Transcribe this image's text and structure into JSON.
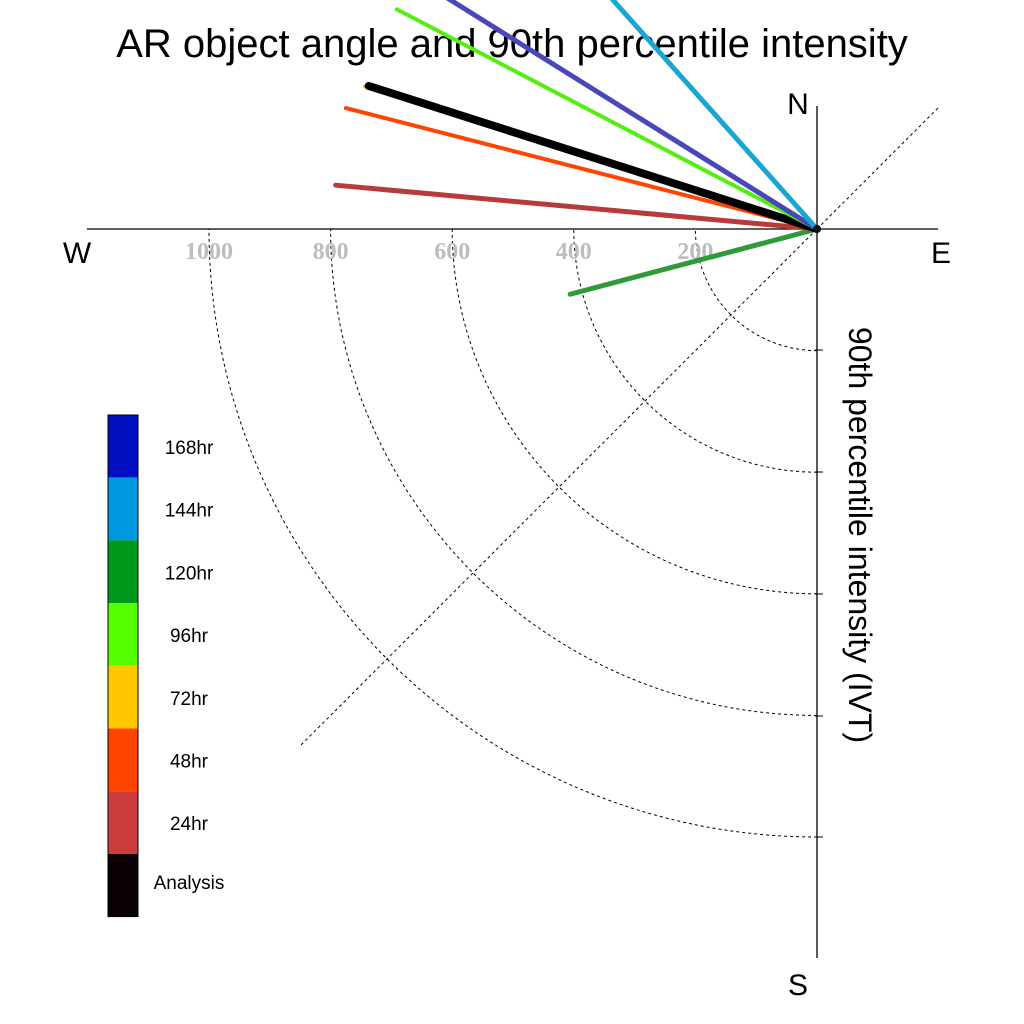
{
  "chart_data": {
    "type": "polar-vector",
    "title": "AR object angle and 90th percentile intensity",
    "ylabel": "90th percentile intensity (IVT)",
    "directions": {
      "north": "N",
      "south": "S",
      "east": "E",
      "west": "W"
    },
    "radial_ticks": [
      200,
      400,
      600,
      800,
      1000
    ],
    "radial_tick_labels": [
      "200",
      "400",
      "600",
      "800",
      "1000"
    ],
    "rmax": 1200,
    "grid": true,
    "legend_placement": "left",
    "legend": [
      {
        "label": "168hr",
        "color": "#0010c0"
      },
      {
        "label": "144hr",
        "color": "#0099e0"
      },
      {
        "label": "120hr",
        "color": "#009a1a"
      },
      {
        "label": "96hr",
        "color": "#55ff00"
      },
      {
        "label": "72hr",
        "color": "#ffc800"
      },
      {
        "label": "48hr",
        "color": "#ff4400"
      },
      {
        "label": "24hr",
        "color": "#cc3c3c"
      },
      {
        "label": "Analysis",
        "color": "#0a0005"
      }
    ],
    "vectors": [
      {
        "label": "120hr",
        "color": "#2f9a3a",
        "angle_deg": 165.2,
        "intensity": 420,
        "width": 5
      },
      {
        "label": "24hr",
        "color": "#b83a3a",
        "angle_deg": 185.2,
        "intensity": 795,
        "width": 5
      },
      {
        "label": "48hr",
        "color": "#ff4400",
        "angle_deg": 194.4,
        "intensity": 800,
        "width": 4
      },
      {
        "label": "72hr",
        "color": "#ffc800",
        "angle_deg": 197.5,
        "intensity": 780,
        "width": 4
      },
      {
        "label": "Analysis",
        "color": "#000000",
        "angle_deg": 197.7,
        "intensity": 774,
        "width": 8
      },
      {
        "label": "96hr",
        "color": "#55ee10",
        "angle_deg": 207.6,
        "intensity": 780,
        "width": 4
      },
      {
        "label": "168hr",
        "color": "#4a48b8",
        "angle_deg": 212.0,
        "intensity": 729,
        "width": 5
      },
      {
        "label": "144hr",
        "color": "#1aa6d4",
        "angle_deg": 228.3,
        "intensity": 527,
        "width": 5
      }
    ]
  }
}
